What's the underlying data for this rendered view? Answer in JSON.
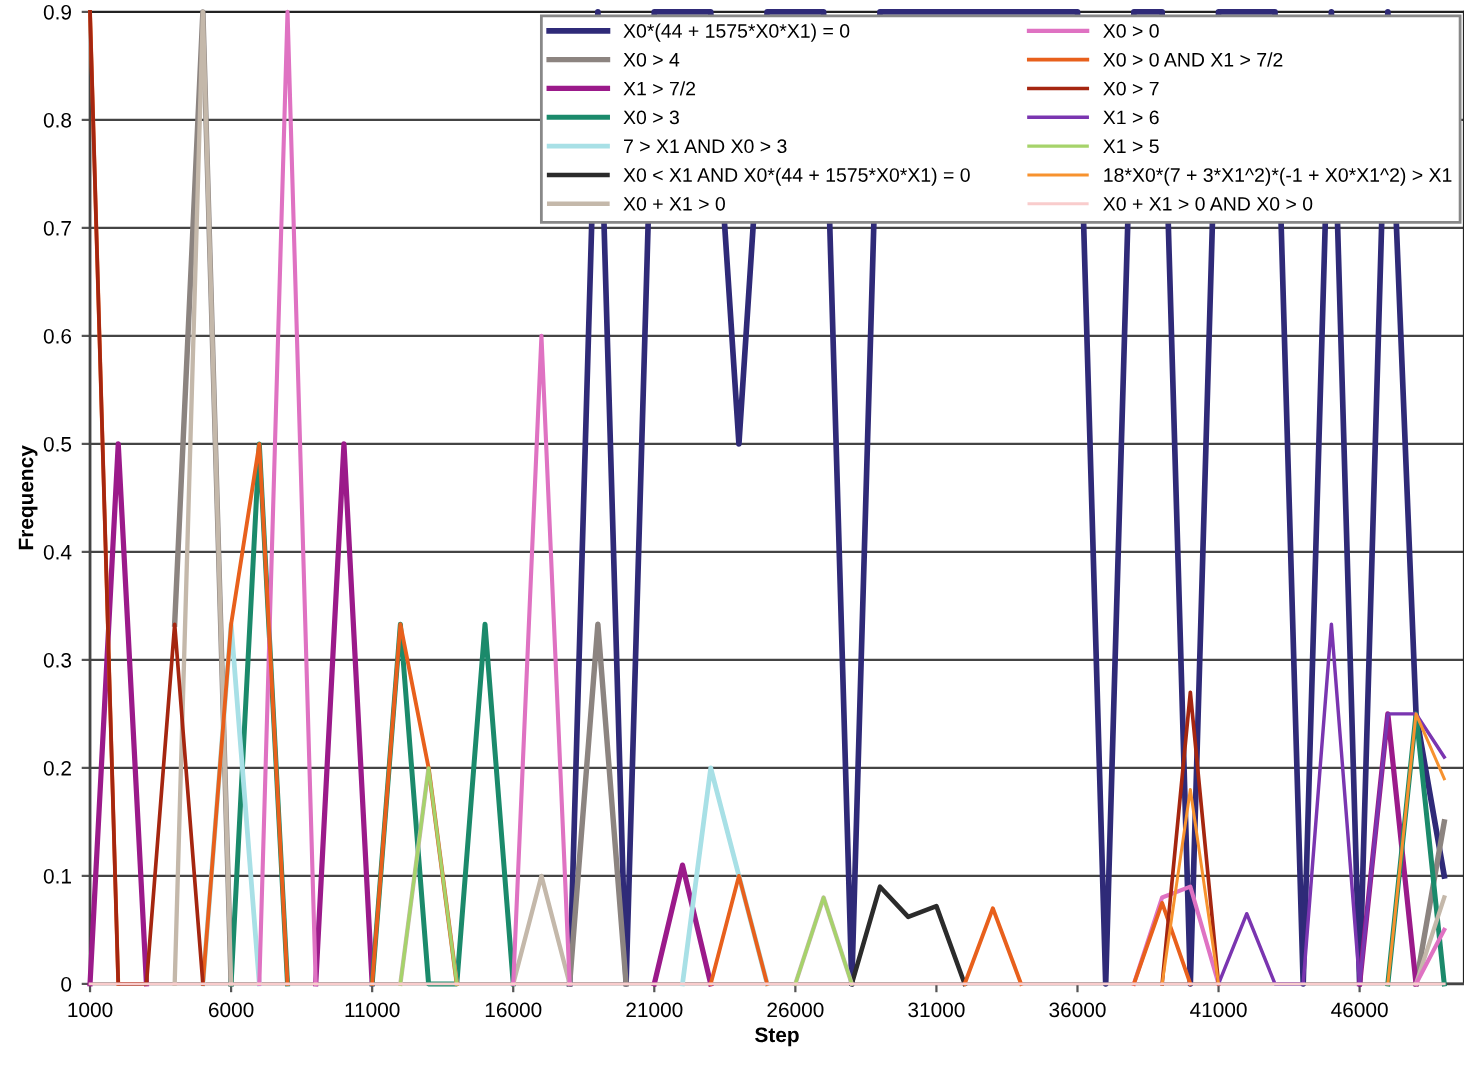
{
  "chart_data": {
    "type": "line",
    "xlabel": "Step",
    "ylabel": "Frequency",
    "x": [
      1000,
      2000,
      3000,
      4000,
      5000,
      6000,
      7000,
      8000,
      9000,
      10000,
      11000,
      12000,
      13000,
      14000,
      15000,
      16000,
      17000,
      18000,
      19000,
      20000,
      21000,
      22000,
      23000,
      24000,
      25000,
      26000,
      27000,
      28000,
      29000,
      30000,
      31000,
      32000,
      33000,
      34000,
      35000,
      36000,
      37000,
      38000,
      39000,
      40000,
      41000,
      42000,
      43000,
      44000,
      45000,
      46000,
      47000,
      48000,
      49000
    ],
    "xlim": [
      1000,
      49700
    ],
    "xticks": [
      1000,
      6000,
      11000,
      16000,
      21000,
      26000,
      31000,
      36000,
      41000,
      46000
    ],
    "ylim": [
      0,
      0.9
    ],
    "yticks": [
      0,
      0.1,
      0.2,
      0.3,
      0.4,
      0.5,
      0.6,
      0.7,
      0.8,
      0.9
    ],
    "grid": "y",
    "legend": "top right",
    "marker": "none",
    "line_style": "solid",
    "series": [
      {
        "name": "X0*(44 + 1575*X0*X1) = 0",
        "color": "#2f2a78",
        "values": [
          null,
          null,
          null,
          null,
          null,
          null,
          null,
          null,
          null,
          null,
          null,
          null,
          null,
          null,
          null,
          null,
          null,
          0,
          0.9,
          0,
          0.9,
          0.9,
          0.9,
          0.5,
          0.9,
          0.9,
          0.9,
          0,
          0.9,
          0.9,
          0.9,
          0.9,
          0.9,
          0.9,
          0.9,
          0.9,
          0,
          0.9,
          0.9,
          0,
          0.9,
          0.9,
          0.9,
          0,
          0.9,
          0,
          0.9,
          0.25,
          0.1
        ]
      },
      {
        "name": "X0 > 4",
        "color": "#8c8480",
        "values": [
          null,
          null,
          null,
          0.333,
          0.9,
          0,
          null,
          null,
          null,
          null,
          null,
          null,
          null,
          null,
          null,
          null,
          null,
          0,
          0.333,
          0,
          null,
          null,
          null,
          null,
          null,
          null,
          null,
          null,
          null,
          null,
          null,
          null,
          null,
          null,
          null,
          null,
          null,
          null,
          null,
          null,
          null,
          null,
          null,
          null,
          null,
          null,
          null,
          0,
          0.15
        ]
      },
      {
        "name": "X1 > 7/2",
        "color": "#9b1a8a",
        "values": [
          0,
          0.5,
          0,
          null,
          null,
          null,
          null,
          null,
          0,
          0.5,
          0,
          null,
          null,
          null,
          null,
          null,
          null,
          null,
          null,
          null,
          0,
          0.11,
          0,
          null,
          null,
          null,
          null,
          null,
          null,
          null,
          null,
          null,
          null,
          null,
          null,
          null,
          null,
          null,
          null,
          null,
          null,
          null,
          null,
          null,
          null,
          0,
          0.25,
          0,
          null
        ]
      },
      {
        "name": "X0 > 3",
        "color": "#1b8a6b",
        "values": [
          null,
          null,
          null,
          null,
          null,
          0,
          0.5,
          0,
          null,
          null,
          0,
          0.333,
          0,
          0,
          0.333,
          0,
          null,
          null,
          null,
          null,
          null,
          null,
          null,
          null,
          null,
          null,
          null,
          null,
          null,
          null,
          null,
          null,
          null,
          null,
          null,
          null,
          null,
          null,
          null,
          null,
          null,
          null,
          null,
          null,
          null,
          null,
          0,
          0.25,
          0
        ]
      },
      {
        "name": "7 > X1 AND X0 > 3",
        "color": "#a8e0e6",
        "values": [
          null,
          null,
          null,
          null,
          0,
          0.333,
          0,
          null,
          null,
          null,
          null,
          null,
          null,
          null,
          null,
          null,
          null,
          null,
          null,
          null,
          null,
          0,
          0.2,
          0.1,
          0,
          null,
          null,
          null,
          null,
          null,
          null,
          null,
          null,
          null,
          null,
          null,
          null,
          null,
          null,
          null,
          null,
          null,
          null,
          null,
          null,
          null,
          null,
          null,
          null
        ]
      },
      {
        "name": "X0 < X1 AND X0*(44 + 1575*X0*X1) = 0",
        "color": "#2b2b2b",
        "values": [
          null,
          null,
          null,
          null,
          null,
          null,
          null,
          null,
          null,
          null,
          null,
          null,
          null,
          null,
          null,
          null,
          null,
          null,
          null,
          null,
          null,
          null,
          null,
          null,
          null,
          null,
          null,
          0,
          0.09,
          0.062,
          0.072,
          0,
          null,
          null,
          null,
          null,
          null,
          null,
          null,
          null,
          null,
          null,
          null,
          null,
          null,
          null,
          null,
          null,
          null
        ]
      },
      {
        "name": "X0 + X1 > 0",
        "color": "#c4b8aa",
        "values": [
          null,
          null,
          null,
          0,
          0.9,
          0,
          null,
          null,
          null,
          null,
          null,
          0,
          0.2,
          0,
          null,
          0,
          0.1,
          0,
          null,
          null,
          null,
          null,
          null,
          null,
          null,
          0,
          0.08,
          0,
          null,
          null,
          null,
          null,
          null,
          null,
          null,
          null,
          null,
          null,
          null,
          null,
          null,
          null,
          null,
          null,
          null,
          null,
          null,
          0,
          0.08
        ]
      },
      {
        "name": "X0 > 0",
        "color": "#df72c2",
        "values": [
          null,
          null,
          null,
          null,
          null,
          null,
          0,
          0.9,
          0,
          null,
          null,
          null,
          null,
          null,
          null,
          0,
          0.6,
          0,
          null,
          null,
          null,
          null,
          null,
          null,
          null,
          null,
          null,
          null,
          null,
          null,
          null,
          null,
          null,
          null,
          null,
          null,
          null,
          0,
          0.08,
          0.09,
          0,
          null,
          null,
          null,
          null,
          null,
          null,
          0,
          0.05
        ]
      },
      {
        "name": "X0 > 0 AND X1 > 7/2",
        "color": "#e8601c",
        "values": [
          0.9,
          0,
          null,
          null,
          0,
          0.333,
          0.5,
          0,
          null,
          null,
          0,
          0.333,
          0.2,
          0,
          null,
          null,
          null,
          null,
          null,
          null,
          null,
          null,
          0,
          0.1,
          0,
          null,
          null,
          null,
          null,
          null,
          null,
          0,
          0.07,
          0,
          null,
          null,
          null,
          0,
          0.075,
          0,
          null,
          null,
          null,
          null,
          null,
          null,
          null,
          null,
          null
        ]
      },
      {
        "name": "X0 > 7",
        "color": "#a52610",
        "values": [
          0.9,
          0,
          0,
          0.333,
          0,
          null,
          null,
          null,
          null,
          null,
          null,
          null,
          null,
          null,
          null,
          null,
          null,
          null,
          null,
          null,
          null,
          null,
          null,
          null,
          null,
          null,
          null,
          null,
          null,
          null,
          null,
          null,
          null,
          null,
          null,
          null,
          null,
          null,
          0,
          0.27,
          0,
          null,
          null,
          null,
          null,
          null,
          null,
          null,
          null
        ]
      },
      {
        "name": "X1 > 6",
        "color": "#7a35b0",
        "values": [
          null,
          null,
          null,
          null,
          null,
          null,
          null,
          null,
          null,
          null,
          null,
          null,
          null,
          null,
          null,
          null,
          null,
          null,
          null,
          null,
          null,
          null,
          null,
          null,
          null,
          null,
          null,
          null,
          null,
          null,
          null,
          null,
          null,
          null,
          null,
          null,
          null,
          null,
          null,
          null,
          0,
          0.065,
          0,
          0,
          0.333,
          0,
          0.25,
          0.25,
          0.21
        ]
      },
      {
        "name": "X1 > 5",
        "color": "#a6d36a",
        "values": [
          null,
          null,
          null,
          null,
          null,
          null,
          null,
          null,
          null,
          null,
          null,
          0,
          0.2,
          0,
          null,
          null,
          null,
          null,
          null,
          null,
          null,
          null,
          null,
          null,
          null,
          0,
          0.08,
          0,
          null,
          null,
          null,
          null,
          null,
          null,
          null,
          null,
          null,
          null,
          null,
          null,
          null,
          null,
          null,
          null,
          null,
          null,
          null,
          null,
          null
        ]
      },
      {
        "name": "18*X0*(7 + 3*X1^2)*(-1 + X0*X1^2) > X1",
        "color": "#f7922e",
        "values": [
          null,
          null,
          null,
          null,
          null,
          null,
          null,
          null,
          null,
          null,
          null,
          null,
          null,
          null,
          null,
          null,
          null,
          null,
          null,
          null,
          null,
          null,
          null,
          null,
          null,
          null,
          null,
          null,
          null,
          null,
          null,
          null,
          null,
          null,
          null,
          null,
          null,
          null,
          0,
          0.18,
          0,
          null,
          null,
          null,
          null,
          null,
          0,
          0.25,
          0.19
        ]
      },
      {
        "name": "X0 + X1 > 0 AND X0 > 0",
        "color": "#f9cccc",
        "values": [
          0,
          0,
          0,
          0,
          0,
          0,
          0,
          0,
          0,
          0,
          0,
          0,
          0,
          0,
          0,
          0,
          0,
          0,
          0,
          0,
          0,
          0,
          0,
          0,
          0,
          0,
          0,
          0,
          0,
          0,
          0,
          0,
          0,
          0,
          0,
          0,
          0,
          0,
          0,
          0,
          0,
          0,
          0,
          0,
          0,
          0,
          0,
          0,
          0
        ]
      }
    ]
  }
}
